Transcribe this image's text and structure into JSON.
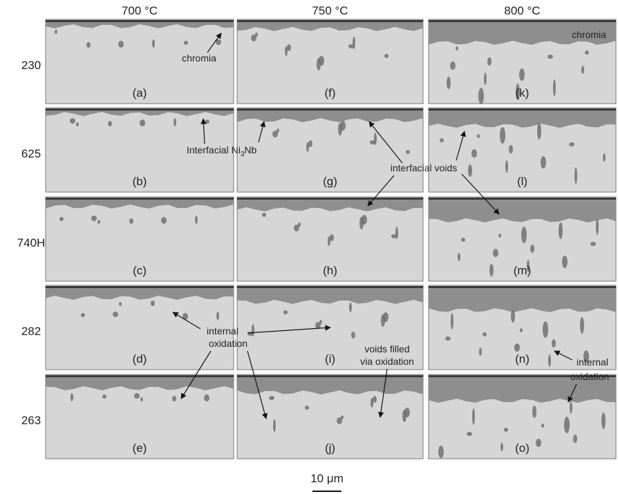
{
  "column_headers": [
    "700 °C",
    "750 °C",
    "800 °C"
  ],
  "row_labels": [
    "230",
    "625",
    "740H",
    "282",
    "263"
  ],
  "panels": [
    [
      "(a)",
      "(b)",
      "(c)",
      "(d)",
      "(e)"
    ],
    [
      "(f)",
      "(g)",
      "(h)",
      "(i)",
      "(j)"
    ],
    [
      "(k)",
      "(l)",
      "(m)",
      "(n)",
      "(o)"
    ]
  ],
  "annotations": {
    "chromia_a": "chromia",
    "chromia_k": "chromia",
    "ni3nb": [
      "Interfacial Ni",
      "3",
      "Nb"
    ],
    "interfacial_voids": "interfacial voids",
    "internal_oxidation_left": [
      "internal",
      "oxidation"
    ],
    "voids_filled": [
      "voids filled",
      "via oxidation"
    ],
    "internal_oxidation_right": [
      "internal",
      "oxidation"
    ]
  },
  "scale_bar": "10 μm"
}
